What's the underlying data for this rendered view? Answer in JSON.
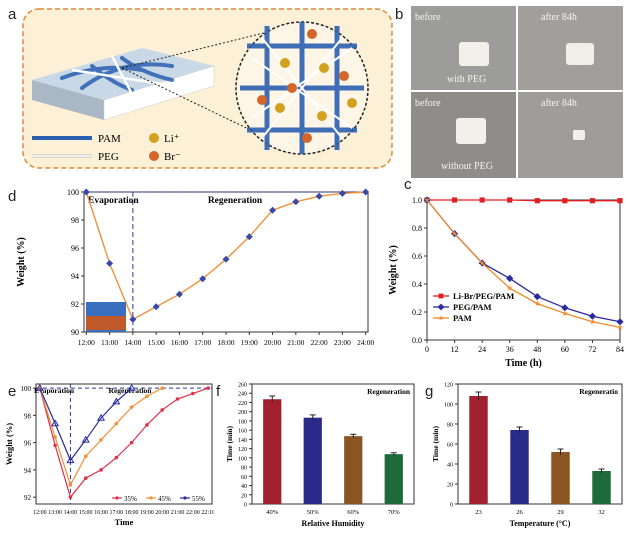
{
  "panel_labels": {
    "a": "a",
    "b": "b",
    "c": "c",
    "d": "d",
    "e": "e",
    "f": "f",
    "g": "g"
  },
  "panel_a": {
    "legend": [
      {
        "name": "PAM",
        "color": "#2a5fb0"
      },
      {
        "name": "PEG",
        "color": "#ffffff"
      },
      {
        "name": "Li⁺",
        "color": "#d4a020"
      },
      {
        "name": "Br⁻",
        "color": "#d4662a"
      }
    ]
  },
  "panel_b": {
    "photos": [
      {
        "top_left": "before",
        "top_right": "after 84h",
        "caption": "with PEG"
      },
      {
        "top_left": "before",
        "top_right": "after 84h",
        "caption": "without PEG"
      }
    ]
  },
  "chart_data": [
    {
      "id": "c",
      "type": "line",
      "xlabel": "Time (h)",
      "ylabel": "Weight (%)",
      "xlim": [
        0,
        84
      ],
      "ylim": [
        0,
        1.0
      ],
      "xticks": [
        "0",
        "12",
        "24",
        "36",
        "48",
        "60",
        "72",
        "84"
      ],
      "yticks": [
        "0.0",
        "0.2",
        "0.4",
        "0.6",
        "0.8",
        "1.0"
      ],
      "x": [
        0,
        12,
        24,
        36,
        48,
        60,
        72,
        84
      ],
      "series": [
        {
          "name": "Li-Br/PEG/PAM",
          "color": "#e02020",
          "marker": "square",
          "values": [
            1.0,
            1.0,
            1.0,
            1.0,
            0.995,
            0.995,
            0.995,
            0.995
          ]
        },
        {
          "name": "PEG/PAM",
          "color": "#2a2aa0",
          "marker": "diamond",
          "values": [
            1.0,
            0.76,
            0.55,
            0.44,
            0.31,
            0.23,
            0.17,
            0.13
          ]
        },
        {
          "name": "PAM",
          "color": "#f08a2a",
          "marker": "star",
          "values": [
            1.0,
            0.76,
            0.55,
            0.37,
            0.26,
            0.19,
            0.13,
            0.09
          ]
        }
      ],
      "legend_position": "bottom-left"
    },
    {
      "id": "d",
      "type": "line",
      "xlabel": "",
      "ylabel": "Weight (%)",
      "ylim": [
        90,
        100
      ],
      "yticks": [
        "90",
        "92",
        "94",
        "96",
        "98",
        "100"
      ],
      "categories": [
        "12:00",
        "13:00",
        "14:00",
        "15:00",
        "16:00",
        "17:00",
        "18:00",
        "19:00",
        "20:00",
        "21:00",
        "22:00",
        "23:00",
        "24:00"
      ],
      "x": [
        0,
        1,
        2,
        3,
        4,
        5,
        6,
        7,
        8,
        9,
        10,
        11,
        12
      ],
      "series": [
        {
          "color": "#3a49a8",
          "marker_color": "#3a49a8",
          "line_color": "#f0913a",
          "values": [
            100,
            94.9,
            90.9,
            91.8,
            92.7,
            93.8,
            95.2,
            96.8,
            98.7,
            99.3,
            99.7,
            99.9,
            100
          ]
        }
      ],
      "annotations": [
        "Evaporation",
        "Regeneration"
      ]
    },
    {
      "id": "e",
      "type": "line",
      "xlabel": "Time",
      "ylabel": "Weight (%)",
      "ylim": [
        91.5,
        100.3
      ],
      "yticks": [
        "92",
        "94",
        "96",
        "98",
        "100"
      ],
      "categories": [
        "12:00",
        "13:00",
        "14:00",
        "15:00",
        "16:00",
        "17:00",
        "18:00",
        "19:00",
        "20:00",
        "21:00",
        "22:00",
        "22:10"
      ],
      "series": [
        {
          "name": "35%",
          "color": "#e0304a",
          "x": [
            0,
            1,
            2,
            3,
            4,
            5,
            6,
            7,
            8,
            9,
            10,
            11
          ],
          "values": [
            100,
            95.8,
            92.0,
            93.4,
            94.0,
            94.9,
            96.0,
            97.3,
            98.4,
            99.2,
            99.6,
            100
          ]
        },
        {
          "name": "45%",
          "color": "#f0913a",
          "x": [
            0,
            1,
            2,
            3,
            4,
            5,
            6,
            7,
            8
          ],
          "values": [
            100,
            96.4,
            92.9,
            95.0,
            96.2,
            97.4,
            98.6,
            99.4,
            100
          ]
        },
        {
          "name": "55%",
          "color": "#2a2aa0",
          "x": [
            0,
            1,
            2,
            3,
            4,
            5,
            6
          ],
          "values": [
            100,
            97.4,
            94.7,
            96.2,
            97.8,
            99.0,
            100
          ]
        }
      ],
      "annotations": [
        "Evaporation",
        "Regeneration"
      ]
    },
    {
      "id": "f",
      "type": "bar",
      "title": "Regeneration",
      "xlabel": "Relative Humidity",
      "ylabel": "Time (min)",
      "ylim": [
        0,
        260
      ],
      "yticks": [
        "0",
        "20",
        "40",
        "60",
        "80",
        "100",
        "120",
        "140",
        "160",
        "180",
        "200",
        "220",
        "240",
        "260"
      ],
      "categories": [
        "40%",
        "50%",
        "60%",
        "70%"
      ],
      "values": [
        227,
        187,
        147,
        108
      ],
      "errors": [
        7,
        6,
        4,
        3
      ],
      "colors": [
        "#a32030",
        "#2a2a8a",
        "#8a5520",
        "#1e6a3a"
      ]
    },
    {
      "id": "g",
      "type": "bar",
      "title": "Regeneratio",
      "xlabel": "Temperature (°C)",
      "ylabel": "Time (min)",
      "ylim": [
        0,
        120
      ],
      "yticks": [
        "0",
        "20",
        "40",
        "60",
        "80",
        "100",
        "120"
      ],
      "categories": [
        "23",
        "26",
        "29",
        "32"
      ],
      "values": [
        108,
        74,
        52,
        33
      ],
      "errors": [
        4,
        3,
        3,
        2
      ],
      "colors": [
        "#a32030",
        "#2a2a8a",
        "#8a5520",
        "#1e6a3a"
      ]
    }
  ]
}
